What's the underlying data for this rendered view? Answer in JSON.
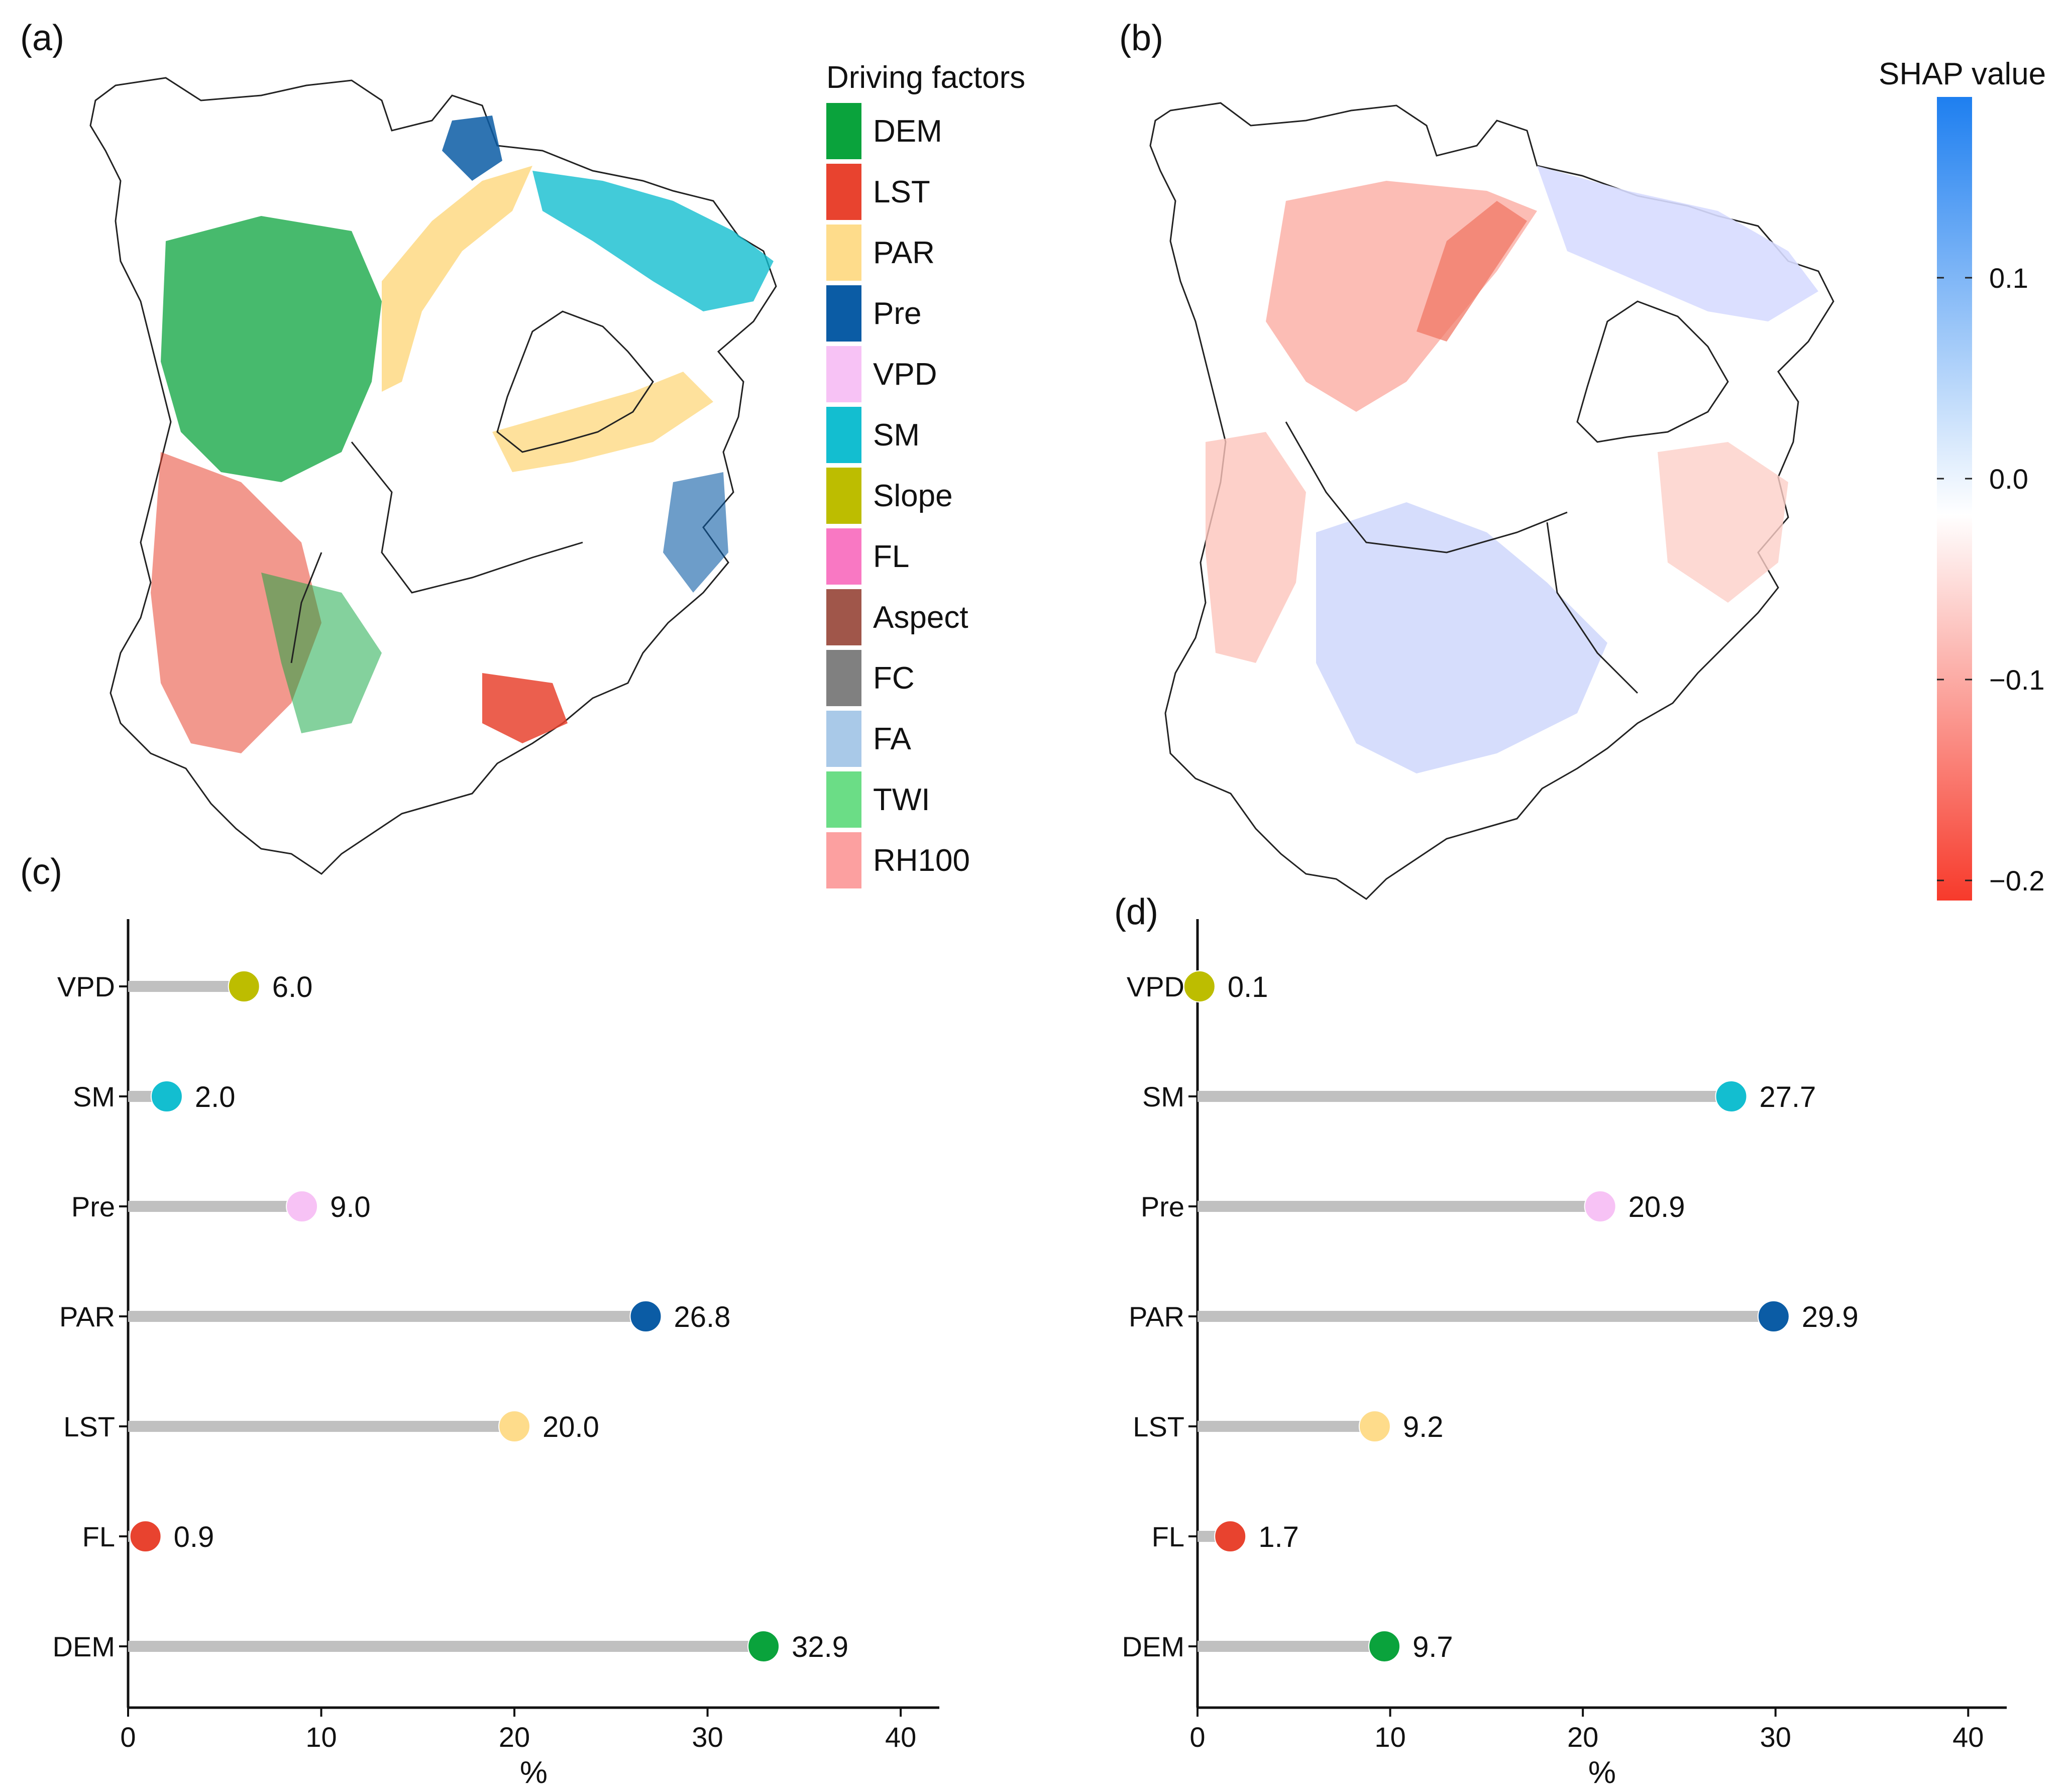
{
  "panels": {
    "a": "(a)",
    "b": "(b)",
    "c": "(c)",
    "d": "(d)"
  },
  "legend": {
    "title": "Driving factors",
    "items": [
      {
        "label": "DEM",
        "color": "#0aa33c"
      },
      {
        "label": "LST",
        "color": "#e8432f"
      },
      {
        "label": "PAR",
        "color": "#fedc8b"
      },
      {
        "label": "Pre",
        "color": "#0b5ca5"
      },
      {
        "label": "VPD",
        "color": "#f7c2f5"
      },
      {
        "label": "SM",
        "color": "#13bed0"
      },
      {
        "label": "Slope",
        "color": "#bdbd00"
      },
      {
        "label": "FL",
        "color": "#f978c3"
      },
      {
        "label": "Aspect",
        "color": "#a0564a"
      },
      {
        "label": "FC",
        "color": "#808080"
      },
      {
        "label": "FA",
        "color": "#a9c9e8"
      },
      {
        "label": "TWI",
        "color": "#6bdd86"
      },
      {
        "label": "RH100",
        "color": "#fca0a0"
      }
    ]
  },
  "colorbar": {
    "title": "SHAP value",
    "ticks": [
      "0.1",
      "0.0",
      "−0.1",
      "−0.2"
    ],
    "tick_values": [
      0.1,
      0.0,
      -0.1,
      -0.2
    ],
    "range": [
      -0.21,
      0.19
    ],
    "colors": {
      "high": "#1e7ff0",
      "mid": "#ffffff",
      "low": "#f73a2b"
    }
  },
  "chart_data": [
    {
      "type": "lollipop",
      "panel": "(c)",
      "categories": [
        "VPD",
        "SM",
        "Pre",
        "PAR",
        "LST",
        "FL",
        "DEM"
      ],
      "values": [
        6.0,
        2.0,
        9.0,
        26.8,
        20.0,
        0.9,
        32.9
      ],
      "value_labels": [
        "6.0",
        "2.0",
        "9.0",
        "26.8",
        "20.0",
        "0.9",
        "32.9"
      ],
      "colors": [
        "#bdbd00",
        "#13bed0",
        "#f7c2f5",
        "#0b5ca5",
        "#fedc8b",
        "#e8432f",
        "#0aa33c"
      ],
      "xlabel": "%",
      "xlim": [
        0,
        42
      ],
      "xticks": [
        "0",
        "10",
        "20",
        "30",
        "40"
      ]
    },
    {
      "type": "lollipop",
      "panel": "(d)",
      "categories": [
        "VPD",
        "SM",
        "Pre",
        "PAR",
        "LST",
        "FL",
        "DEM"
      ],
      "values": [
        0.1,
        27.7,
        20.9,
        29.9,
        9.2,
        1.7,
        9.7
      ],
      "value_labels": [
        "0.1",
        "27.7",
        "20.9",
        "29.9",
        "9.2",
        "1.7",
        "9.7"
      ],
      "colors": [
        "#bdbd00",
        "#13bed0",
        "#f7c2f5",
        "#0b5ca5",
        "#fedc8b",
        "#e8432f",
        "#0aa33c"
      ],
      "xlabel": "%",
      "xlim": [
        0,
        42
      ],
      "xticks": [
        "0",
        "10",
        "20",
        "30",
        "40"
      ]
    }
  ]
}
